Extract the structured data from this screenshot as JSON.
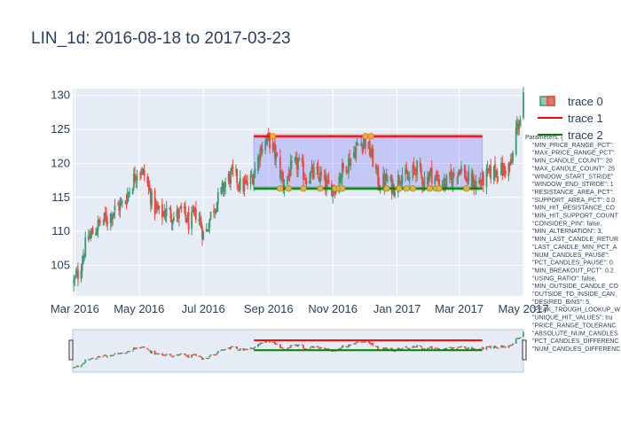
{
  "chart_data": {
    "type": "candlestick",
    "title": "LIN_1d: 2016-08-18 to 2017-03-23",
    "xlabel": "",
    "ylabel": "",
    "x_range": [
      "2016-02-28",
      "2017-05-01"
    ],
    "y_range": [
      100.5,
      131
    ],
    "x_ticks": [
      {
        "date": "2016-03-01",
        "label": "Mar 2016"
      },
      {
        "date": "2016-05-01",
        "label": "May 2016"
      },
      {
        "date": "2016-07-01",
        "label": "Jul 2016"
      },
      {
        "date": "2016-09-01",
        "label": "Sep 2016"
      },
      {
        "date": "2016-11-01",
        "label": "Nov 2016"
      },
      {
        "date": "2017-01-01",
        "label": "Jan 2017"
      },
      {
        "date": "2017-03-01",
        "label": "Mar 2017"
      },
      {
        "date": "2017-05-01",
        "label": "May 2017"
      }
    ],
    "y_ticks": [
      105,
      110,
      115,
      120,
      125,
      130
    ],
    "grid": true,
    "legend_position": "top-right",
    "increasing_color": "#3D9970",
    "decreasing_color": "#FF4136",
    "price_path": [
      [
        "2016-02-29",
        102.5
      ],
      [
        "2016-03-05",
        104
      ],
      [
        "2016-03-12",
        108.5
      ],
      [
        "2016-03-19",
        110
      ],
      [
        "2016-03-26",
        111.5
      ],
      [
        "2016-04-02",
        112
      ],
      [
        "2016-04-09",
        113.5
      ],
      [
        "2016-04-16",
        114
      ],
      [
        "2016-04-23",
        116.5
      ],
      [
        "2016-04-30",
        119.5
      ],
      [
        "2016-05-07",
        118
      ],
      [
        "2016-05-14",
        114
      ],
      [
        "2016-05-21",
        112.5
      ],
      [
        "2016-05-28",
        113
      ],
      [
        "2016-06-04",
        112
      ],
      [
        "2016-06-11",
        113
      ],
      [
        "2016-06-18",
        111
      ],
      [
        "2016-06-25",
        113
      ],
      [
        "2016-07-02",
        109
      ],
      [
        "2016-07-09",
        113
      ],
      [
        "2016-07-16",
        115
      ],
      [
        "2016-07-23",
        117.5
      ],
      [
        "2016-07-30",
        118.5
      ],
      [
        "2016-08-06",
        116.5
      ],
      [
        "2016-08-13",
        117
      ],
      [
        "2016-08-18",
        118.5
      ],
      [
        "2016-08-25",
        122.5
      ],
      [
        "2016-09-01",
        123.5
      ],
      [
        "2016-09-08",
        121
      ],
      [
        "2016-09-15",
        117
      ],
      [
        "2016-09-22",
        119
      ],
      [
        "2016-09-29",
        120
      ],
      [
        "2016-10-06",
        118
      ],
      [
        "2016-10-13",
        118.5
      ],
      [
        "2016-10-20",
        118
      ],
      [
        "2016-10-27",
        116.5
      ],
      [
        "2016-11-03",
        116.5
      ],
      [
        "2016-11-10",
        119
      ],
      [
        "2016-11-17",
        120.5
      ],
      [
        "2016-11-24",
        122.5
      ],
      [
        "2016-12-01",
        123.5
      ],
      [
        "2016-12-08",
        121
      ],
      [
        "2016-12-15",
        117
      ],
      [
        "2016-12-22",
        117.5
      ],
      [
        "2016-12-29",
        116.5
      ],
      [
        "2017-01-05",
        118.5
      ],
      [
        "2017-01-12",
        117.5
      ],
      [
        "2017-01-19",
        119.5
      ],
      [
        "2017-01-26",
        117.5
      ],
      [
        "2017-02-02",
        118.5
      ],
      [
        "2017-02-09",
        117.5
      ],
      [
        "2017-02-16",
        117
      ],
      [
        "2017-02-23",
        118
      ],
      [
        "2017-03-02",
        119.5
      ],
      [
        "2017-03-09",
        117.5
      ],
      [
        "2017-03-16",
        117
      ],
      [
        "2017-03-23",
        117.5
      ],
      [
        "2017-03-30",
        118.5
      ],
      [
        "2017-04-06",
        119
      ],
      [
        "2017-04-13",
        119
      ],
      [
        "2017-04-20",
        120
      ],
      [
        "2017-04-24",
        125
      ],
      [
        "2017-04-28",
        126.5
      ],
      [
        "2017-05-01",
        129.5
      ]
    ],
    "series": [
      {
        "name": "trace 0",
        "type": "candlestick",
        "color": "#3D9970"
      },
      {
        "name": "trace 1",
        "type": "line",
        "color": "#FF0000",
        "x": [
          "2016-08-18",
          "2017-03-23"
        ],
        "y": [
          124.0,
          124.0
        ]
      },
      {
        "name": "trace 2",
        "type": "line",
        "color": "#008000",
        "x": [
          "2016-08-18",
          "2017-03-23"
        ],
        "y": [
          116.3,
          116.3
        ]
      }
    ],
    "shaded_region": {
      "x": [
        "2016-08-18",
        "2017-03-23"
      ],
      "y": [
        116.3,
        124.0
      ],
      "color": "#0000FF"
    },
    "resistance_hits": [
      "2016-09-05",
      "2016-12-02",
      "2016-12-07"
    ],
    "support_hits": [
      "2016-09-12",
      "2016-09-20",
      "2016-10-04",
      "2016-10-20",
      "2016-11-03",
      "2016-11-07",
      "2016-11-10",
      "2016-12-22",
      "2017-01-03",
      "2017-01-10",
      "2017-01-16",
      "2017-02-01",
      "2017-02-07",
      "2017-02-10",
      "2017-03-08"
    ]
  },
  "parameters": [
    "Parameters: {",
    "\"MIN_PRICE_RANGE_PCT\": ",
    "\"MAX_PRICE_RANGE_PCT\": ",
    "\"MIN_CANDLE_COUNT\": 20",
    "\"MAX_CANDLE_COUNT\": 25",
    "\"WINDOW_START_STRIDE\"",
    "\"WINDOW_END_STRIDE\": 1",
    "\"RESISTANCE_AREA_PCT\":",
    "\"SUPPORT_AREA_PCT\": 0.0",
    "\"MIN_HIT_RESISTANCE_CO",
    "\"MIN_HIT_SUPPORT_COUNT",
    "\"CONSIDER_PIN\": false,",
    "\"MIN_ALTERNATION\": 3,",
    "\"MIN_LAST_CANDLE_RETUR",
    "\"LAST_CANDLE_MIN_PCT_A",
    "\"NUM_CANDLES_PAUSE\": ",
    "\"PCT_CANDLES_PAUSE\": 0.",
    "\"MIN_BREAKOUT_PCT\": 0.2",
    "\"USING_RATIO\": false,",
    "\"MIN_OUTSIDE_CANDLE_CO",
    "\"OUTSIDE_TO_INSIDE_CAN",
    "\"DESIRED_BINS\": 5,",
    "\"PEAK_TROUGH_LOOKUP_W",
    "\"UNIQUE_HIT_VALUES\": tru",
    "\"PRICE_RANGE_TOLERANC",
    "\"ABSOLUTE_NUM_CANDLES",
    "\"PCT_CANDLES_DIFFERENC",
    "\"NUM_CANDLES_DIFFERENC"
  ]
}
